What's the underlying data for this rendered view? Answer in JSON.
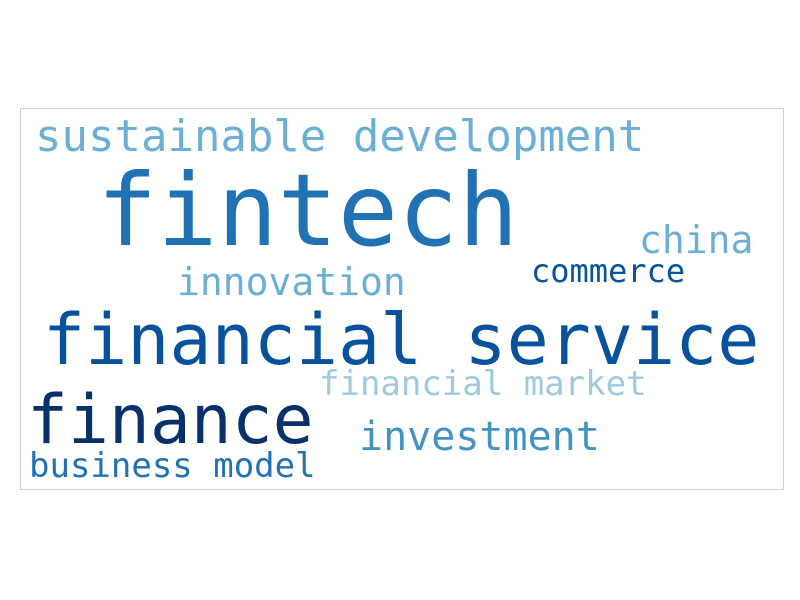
{
  "word_cloud": {
    "words": [
      {
        "text": "sustainable development",
        "color": "#6baed6"
      },
      {
        "text": "fintech",
        "color": "#2171b5"
      },
      {
        "text": "china",
        "color": "#6baed6"
      },
      {
        "text": "commerce",
        "color": "#08519c"
      },
      {
        "text": "innovation",
        "color": "#6baed6"
      },
      {
        "text": "financial service",
        "color": "#08519c"
      },
      {
        "text": "financial market",
        "color": "#9ecae1"
      },
      {
        "text": "finance",
        "color": "#08306b"
      },
      {
        "text": "investment",
        "color": "#4292c6"
      },
      {
        "text": "business model",
        "color": "#2171b5"
      }
    ]
  }
}
